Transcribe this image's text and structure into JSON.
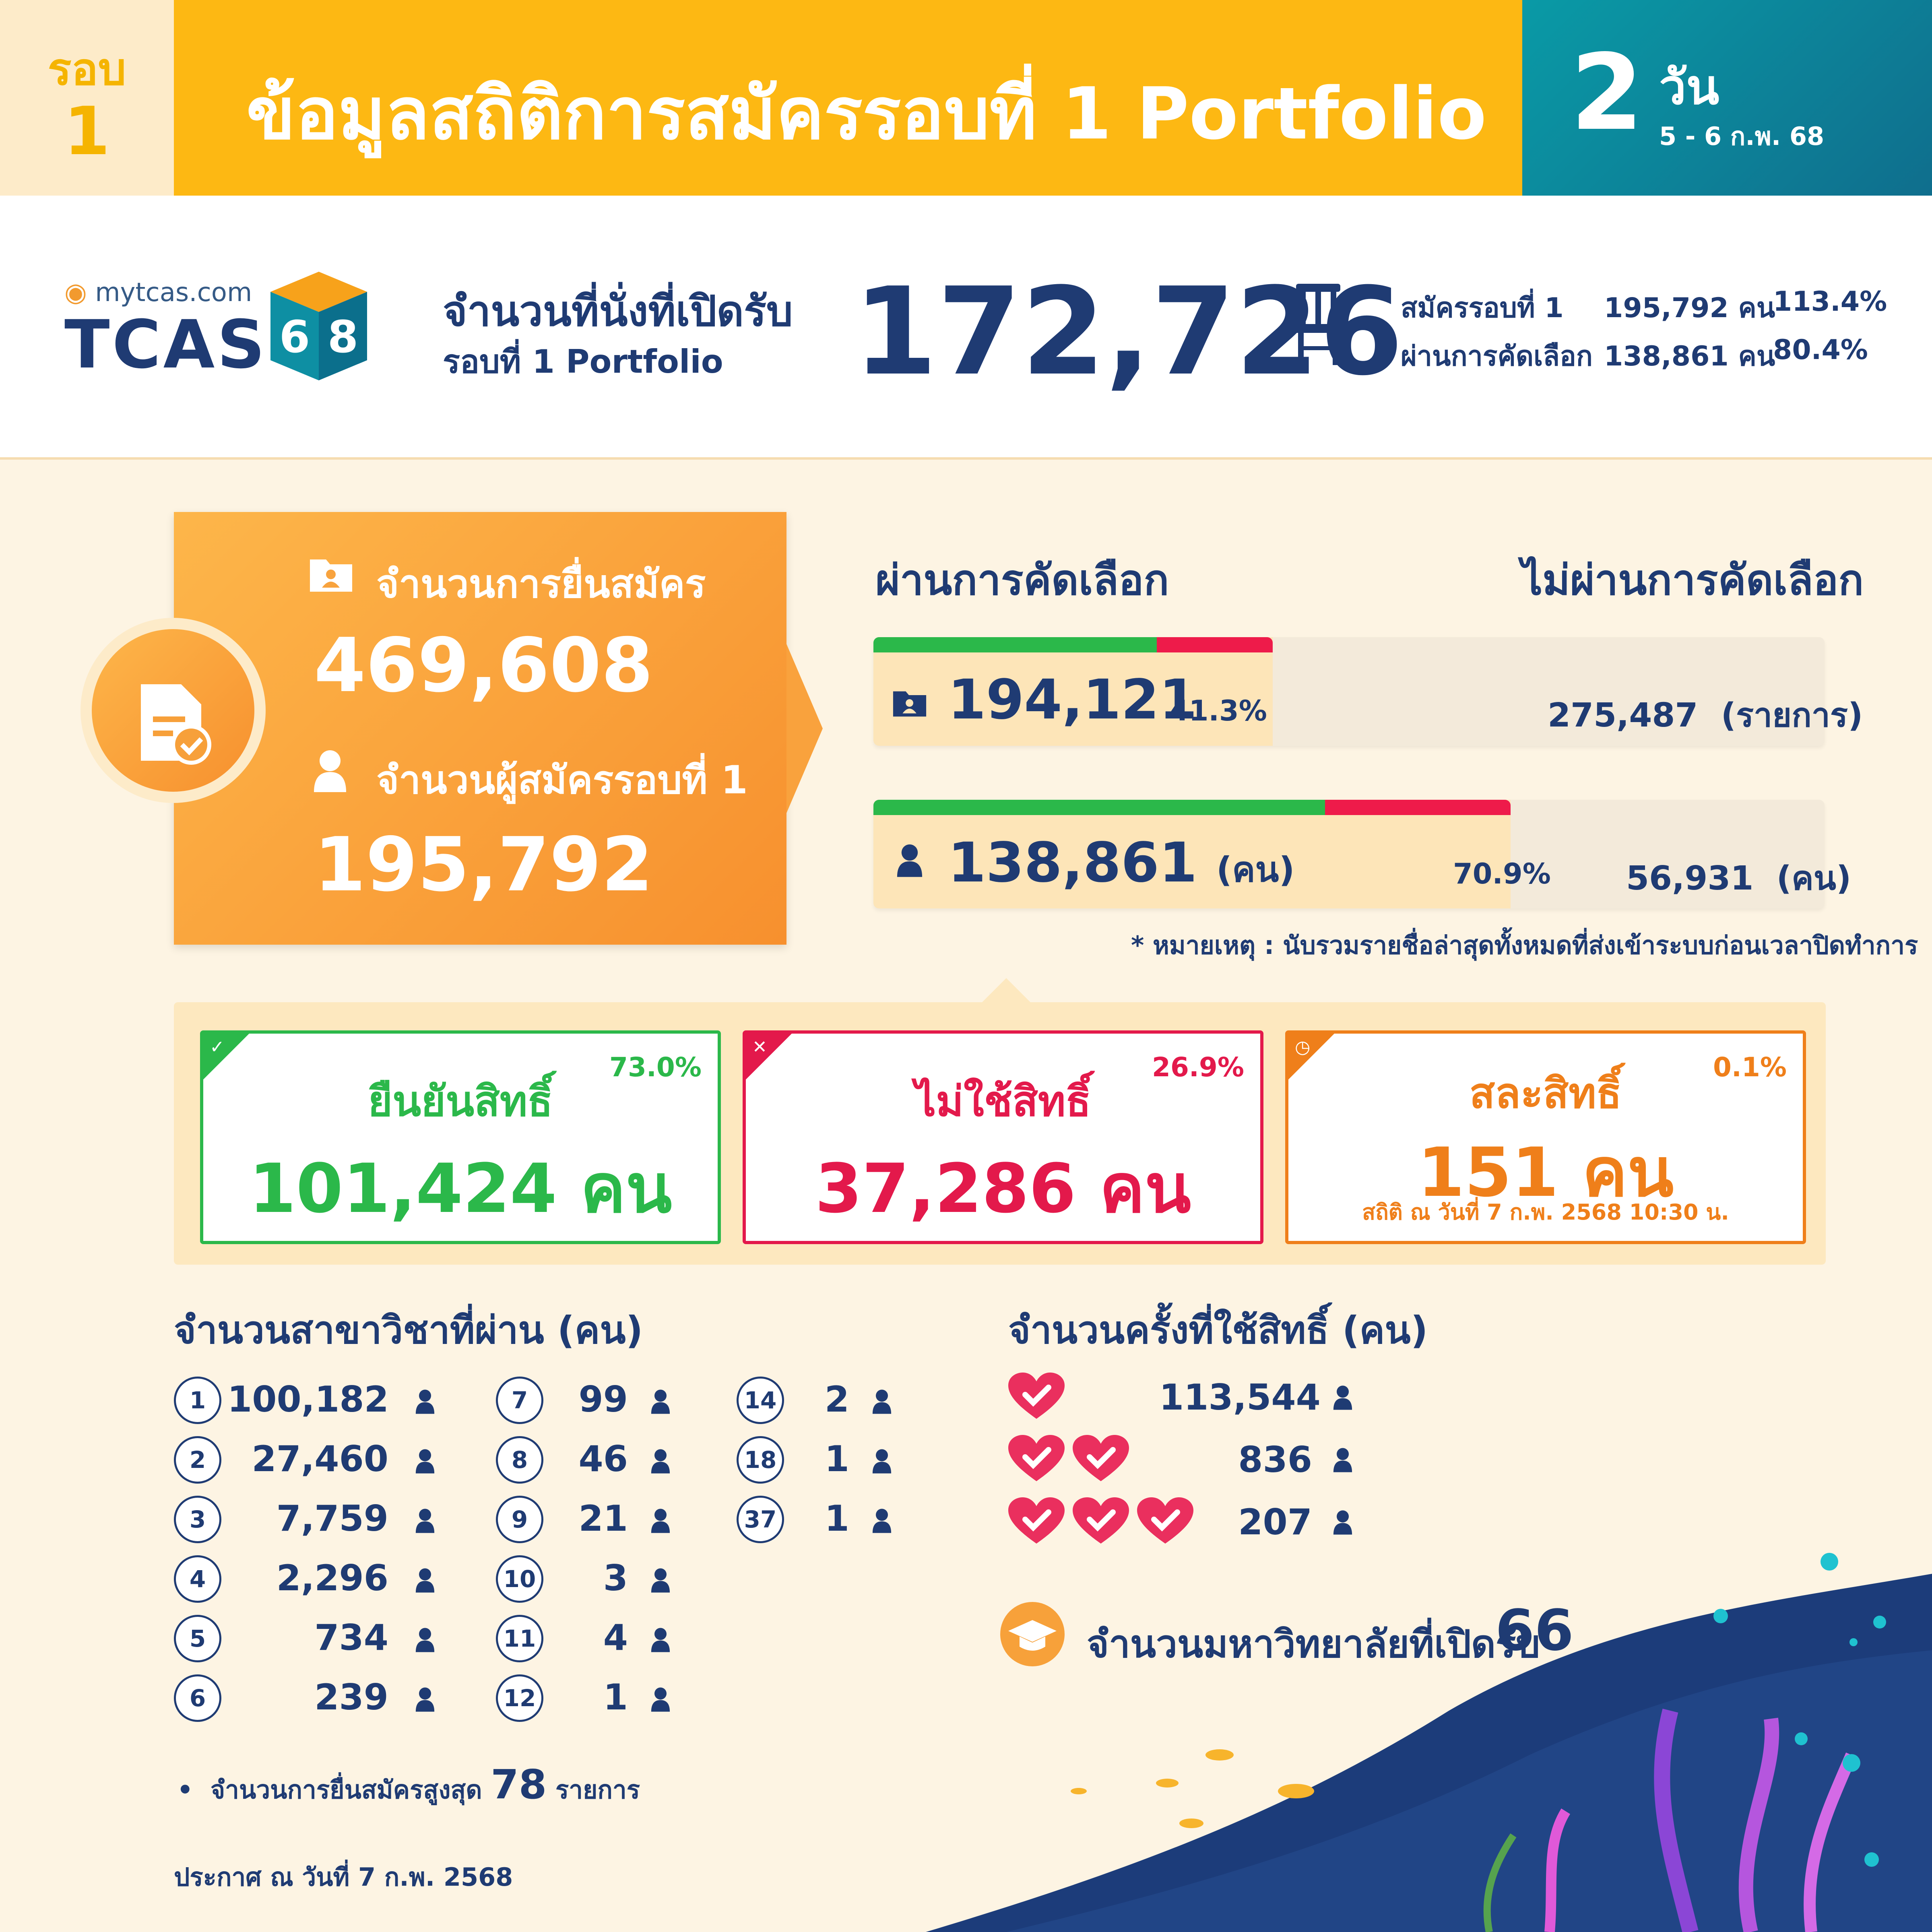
{
  "header": {
    "round_label": "รอบ",
    "round_number": "1",
    "title": "ข้อมูลสถิติการสมัครรอบที่ 1 Portfolio",
    "days_number": "2",
    "days_unit": "วัน",
    "date_range": "5 - 6 ก.พ. 68"
  },
  "brand": {
    "site": "mytcas.com",
    "logo_text": "TCAS",
    "cube_digits": [
      "6",
      "8"
    ]
  },
  "seats": {
    "label_line1": "จำนวนที่นั่งที่เปิดรับ",
    "label_line2": "รอบที่ 1 Portfolio",
    "value": "172,726",
    "rows": [
      {
        "label": "สมัครรอบที่ 1",
        "count": "195,792 คน",
        "percent": "113.4%"
      },
      {
        "label": "ผ่านการคัดเลือก",
        "count": "138,861 คน",
        "percent": "80.4%"
      }
    ]
  },
  "applications": {
    "submissions_label": "จำนวนการยื่นสมัคร",
    "submissions_value": "469,608",
    "applicants_label": "จำนวนผู้สมัครรอบที่ 1",
    "applicants_value": "195,792"
  },
  "selection": {
    "pass_title": "ผ่านการคัดเลือก",
    "fail_title": "ไม่ผ่านการคัดเลือก",
    "bars": [
      {
        "pass_value": "194,121",
        "pass_unit": "",
        "pass_percent": "41.3%",
        "pass_fraction": 0.413,
        "fail_value": "275,487",
        "fail_unit": "(รายการ)",
        "green_fraction": 0.71
      },
      {
        "pass_value": "138,861",
        "pass_unit": "(คน)",
        "pass_percent": "70.9%",
        "pass_fraction": 0.709,
        "fail_value": "56,931",
        "fail_unit": "(คน)",
        "green_fraction": 0.709
      }
    ],
    "note": "* หมายเหตุ : นับรวมรายชื่อล่าสุดทั้งหมดที่ส่งเข้าระบบก่อนเวลาปิดทำการ"
  },
  "confirmation": {
    "cards": [
      {
        "title": "ยืนยันสิทธิ์",
        "percent": "73.0%",
        "value": "101,424 คน",
        "color": "#2bb84a",
        "timestamp": ""
      },
      {
        "title": "ไม่ใช้สิทธิ์",
        "percent": "26.9%",
        "value": "37,286 คน",
        "color": "#e3194b",
        "timestamp": ""
      },
      {
        "title": "สละสิทธิ์",
        "percent": "0.1%",
        "value": "151 คน",
        "color": "#ef7f1a",
        "timestamp": "สถิติ ณ วันที่ 7 ก.พ. 2568 10:30 น."
      }
    ]
  },
  "majors": {
    "title": "จำนวนสาขาวิชาที่ผ่าน (คน)",
    "items": [
      {
        "n": "1",
        "v": "100,182"
      },
      {
        "n": "2",
        "v": "27,460"
      },
      {
        "n": "3",
        "v": "7,759"
      },
      {
        "n": "4",
        "v": "2,296"
      },
      {
        "n": "5",
        "v": "734"
      },
      {
        "n": "6",
        "v": "239"
      },
      {
        "n": "7",
        "v": "99"
      },
      {
        "n": "8",
        "v": "46"
      },
      {
        "n": "9",
        "v": "21"
      },
      {
        "n": "10",
        "v": "3"
      },
      {
        "n": "11",
        "v": "4"
      },
      {
        "n": "12",
        "v": "1"
      },
      {
        "n": "14",
        "v": "2"
      },
      {
        "n": "18",
        "v": "1"
      },
      {
        "n": "37",
        "v": "1"
      }
    ],
    "max_label": "จำนวนการยื่นสมัครสูงสุด",
    "max_value": "78",
    "max_unit": "รายการ"
  },
  "usage": {
    "title": "จำนวนครั้งที่ใช้สิทธิ์ (คน)",
    "rows": [
      {
        "hearts": 1,
        "value": "113,544"
      },
      {
        "hearts": 2,
        "value": "836"
      },
      {
        "hearts": 3,
        "value": "207"
      }
    ],
    "universities_label": "จำนวนมหาวิทยาลัยที่เปิดรับ",
    "universities_value": "66"
  },
  "footer": {
    "announce": "ประกาศ ณ วันที่ 7 ก.พ. 2568"
  },
  "colors": {
    "primary": "#1f3b73",
    "orange": "#fdb813",
    "teal": "#0a8fa0",
    "green": "#2bb84a",
    "red": "#e3194b",
    "amber": "#ef7f1a",
    "heart": "#ea2f5e"
  }
}
